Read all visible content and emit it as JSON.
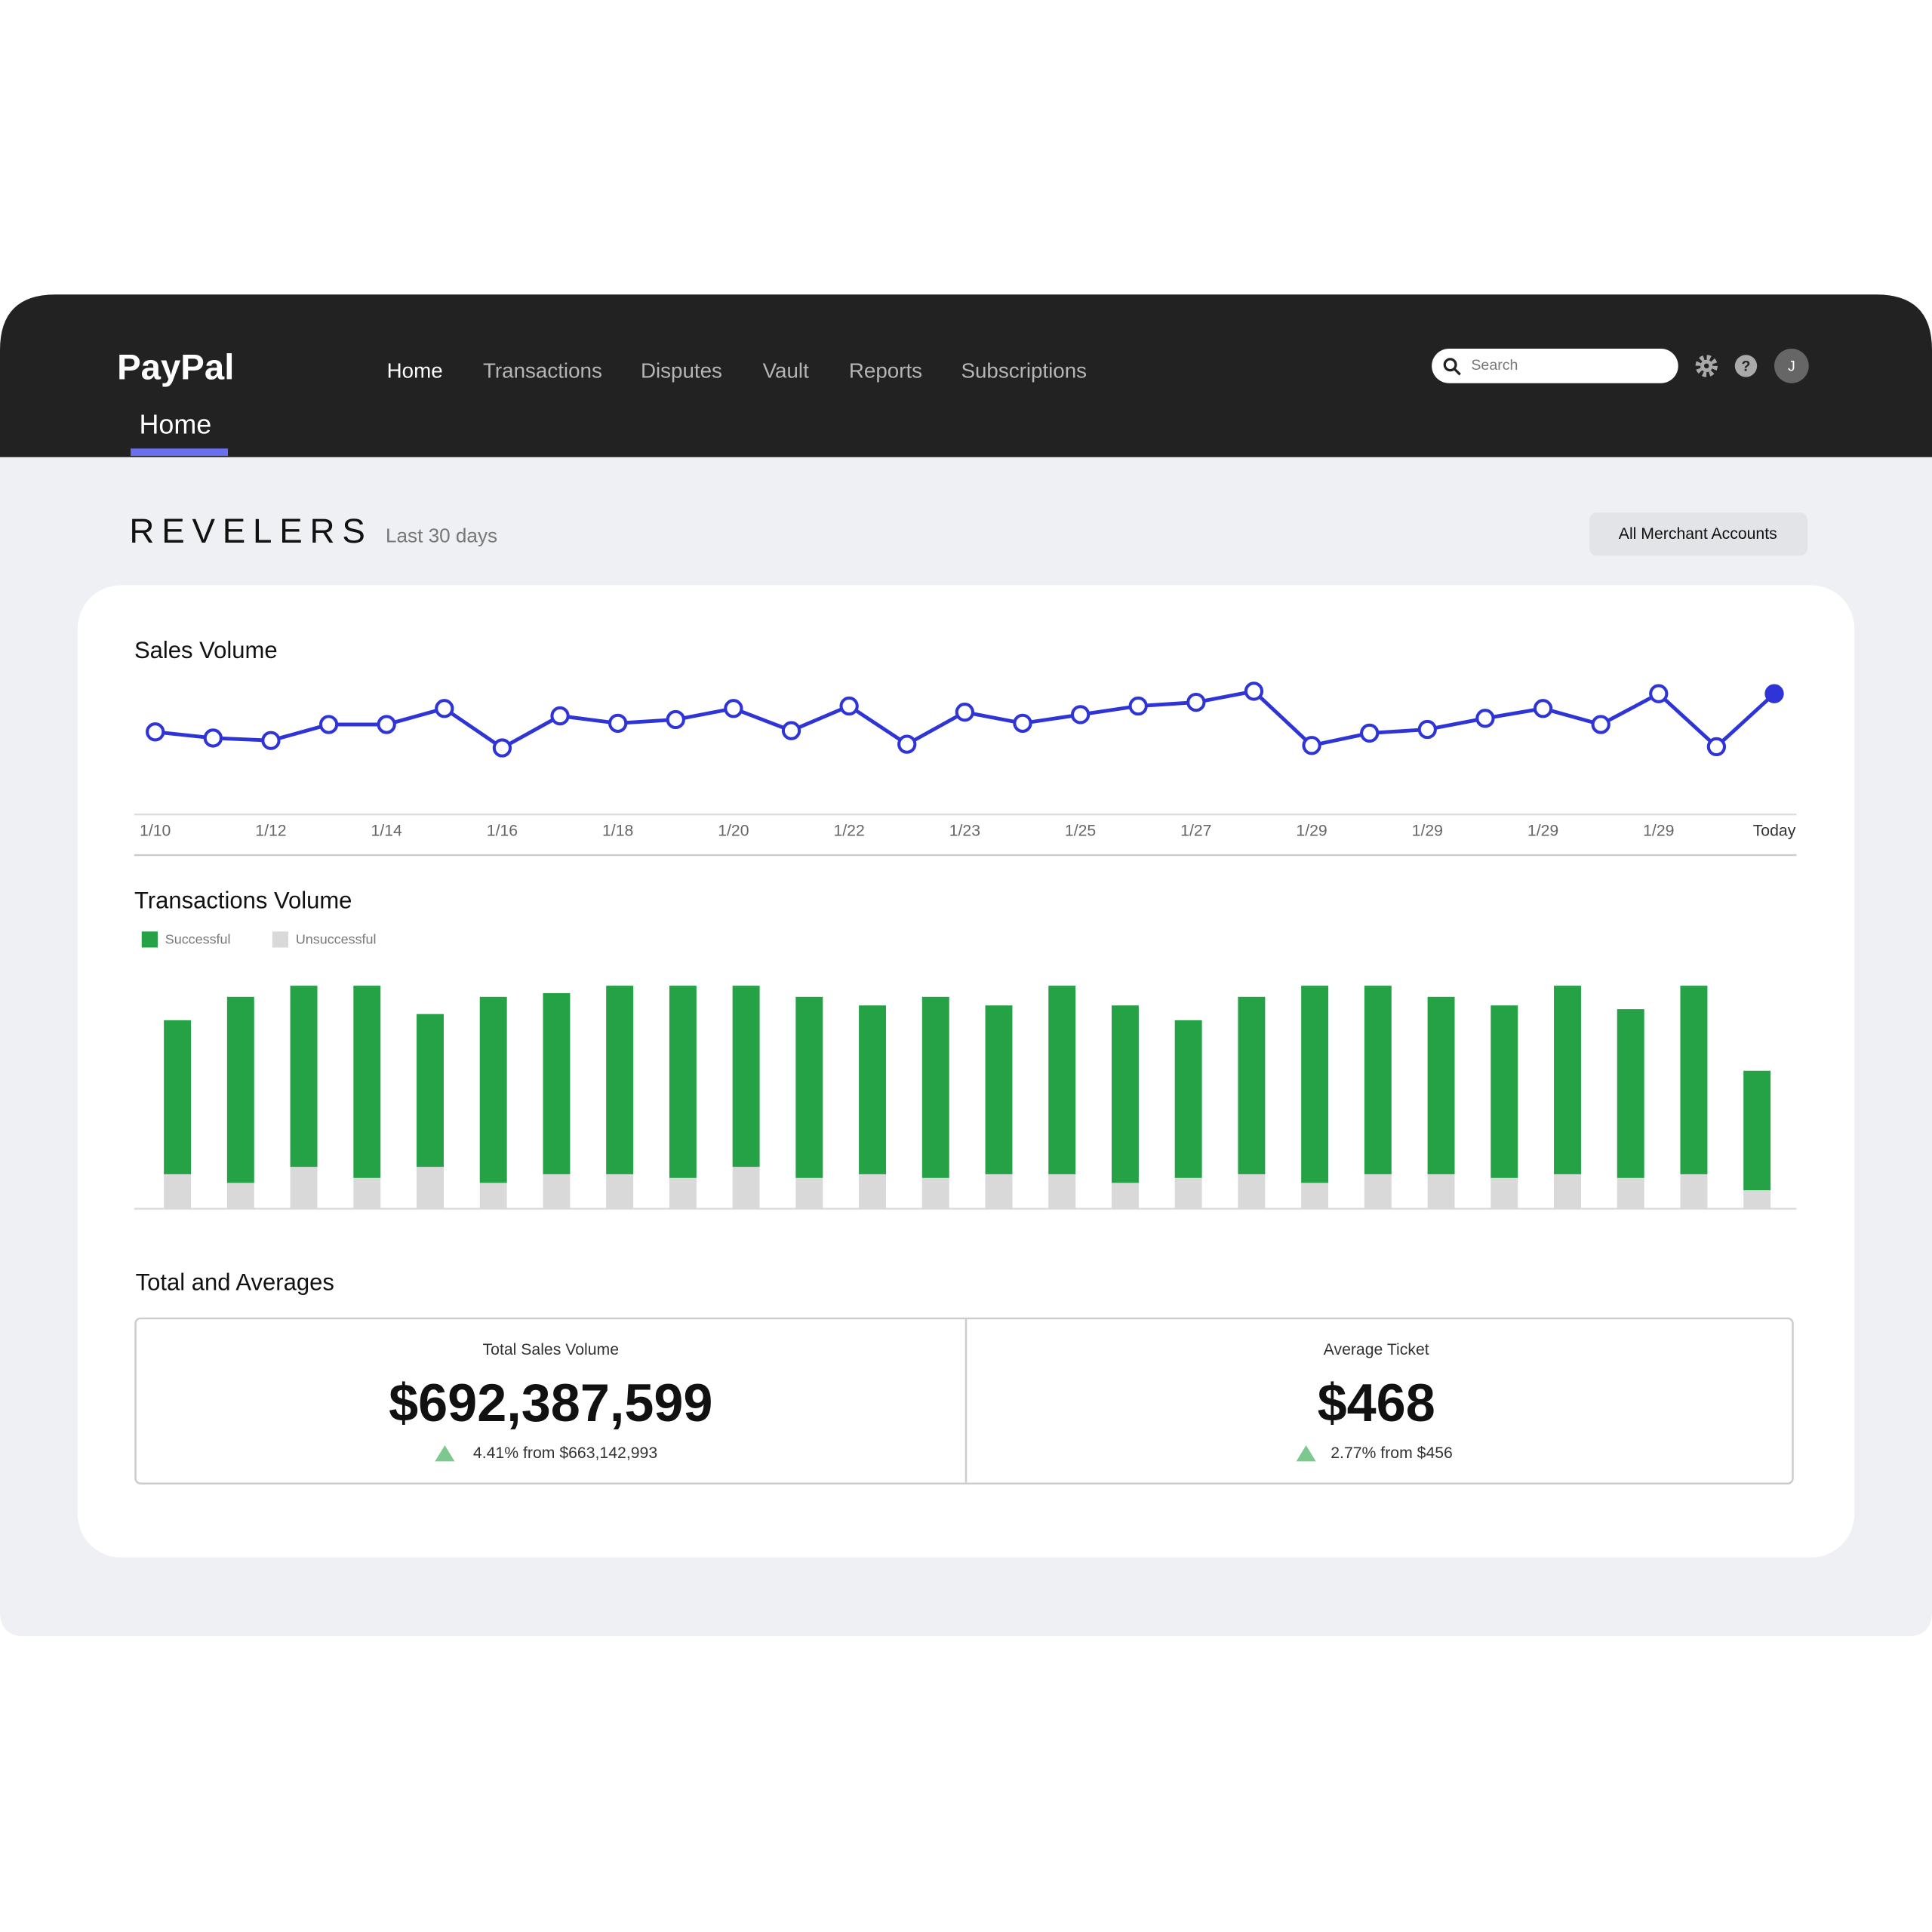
{
  "header": {
    "logo": "PayPal",
    "tab": "Home",
    "nav": [
      "Home",
      "Transactions",
      "Disputes",
      "Vault",
      "Reports",
      "Subscriptions"
    ],
    "search_placeholder": "Search",
    "avatar": "J"
  },
  "page": {
    "brand": "REVELERS",
    "period": "Last 30 days",
    "button": "All Merchant Accounts"
  },
  "chart_data": [
    {
      "type": "line",
      "title": "Sales Volume",
      "categories": [
        "1/10",
        null,
        "1/12",
        null,
        "1/14",
        null,
        "1/16",
        null,
        "1/18",
        null,
        "1/20",
        null,
        "1/22",
        null,
        "1/23",
        null,
        "1/25",
        null,
        "1/27",
        null,
        "1/29",
        null,
        "1/29",
        null,
        "1/29",
        null,
        "1/29",
        null,
        "Today"
      ],
      "series": [
        {
          "name": "Sales Volume",
          "color": "#2f34d6",
          "values": [
            66,
            61,
            59,
            72,
            72,
            85,
            53,
            79,
            73,
            76,
            85,
            67,
            87,
            56,
            82,
            73,
            80,
            87,
            90,
            99,
            55,
            65,
            68,
            77,
            85,
            72,
            97,
            54,
            97
          ]
        }
      ],
      "ylim": [
        0,
        100
      ],
      "highlight_last": true
    },
    {
      "type": "stacked_bar",
      "title": "Transactions Volume",
      "series": [
        {
          "name": "Successful",
          "color": "#24a245",
          "values": [
            125,
            151,
            147,
            156,
            124,
            151,
            147,
            153,
            156,
            147,
            147,
            137,
            147,
            137,
            153,
            144,
            128,
            144,
            160,
            153,
            144,
            140,
            153,
            137,
            153,
            97
          ]
        },
        {
          "name": "Unsuccessful",
          "color": "#d9d9d9",
          "values": [
            28,
            21,
            34,
            25,
            34,
            21,
            28,
            28,
            25,
            34,
            25,
            28,
            25,
            28,
            28,
            21,
            25,
            28,
            21,
            28,
            28,
            25,
            28,
            25,
            28,
            15
          ]
        }
      ],
      "ylim": [
        0,
        181
      ]
    }
  ],
  "totals": {
    "title": "Total and  Averages",
    "cards": [
      {
        "label": "Total Sales Volume",
        "value": "$692,387,599",
        "change": "4.41% from $663,142,993"
      },
      {
        "label": "Average Ticket",
        "value": "$468",
        "change": "2.77% from $456"
      }
    ]
  }
}
